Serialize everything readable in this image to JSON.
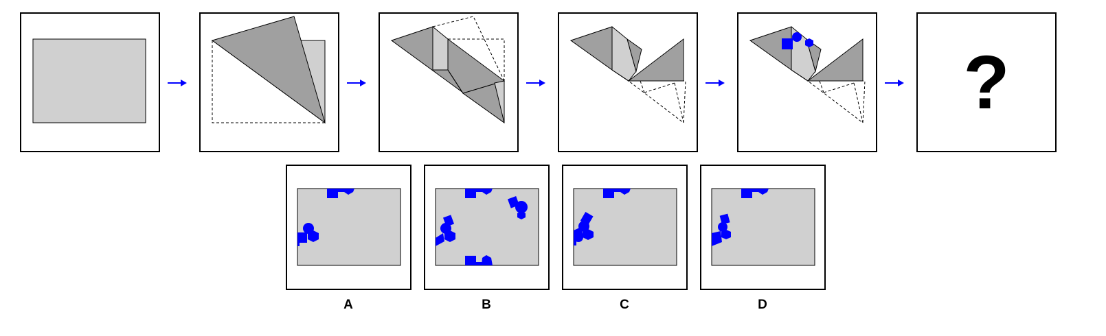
{
  "question_mark": "?",
  "colors": {
    "paper": "#d0d0d0",
    "fold_dark": "#a0a0a0",
    "hole": "#0000ff",
    "arrow": "#0000ff",
    "outline": "#000000"
  },
  "options": [
    {
      "label": "A"
    },
    {
      "label": "B"
    },
    {
      "label": "C"
    },
    {
      "label": "D"
    }
  ]
}
